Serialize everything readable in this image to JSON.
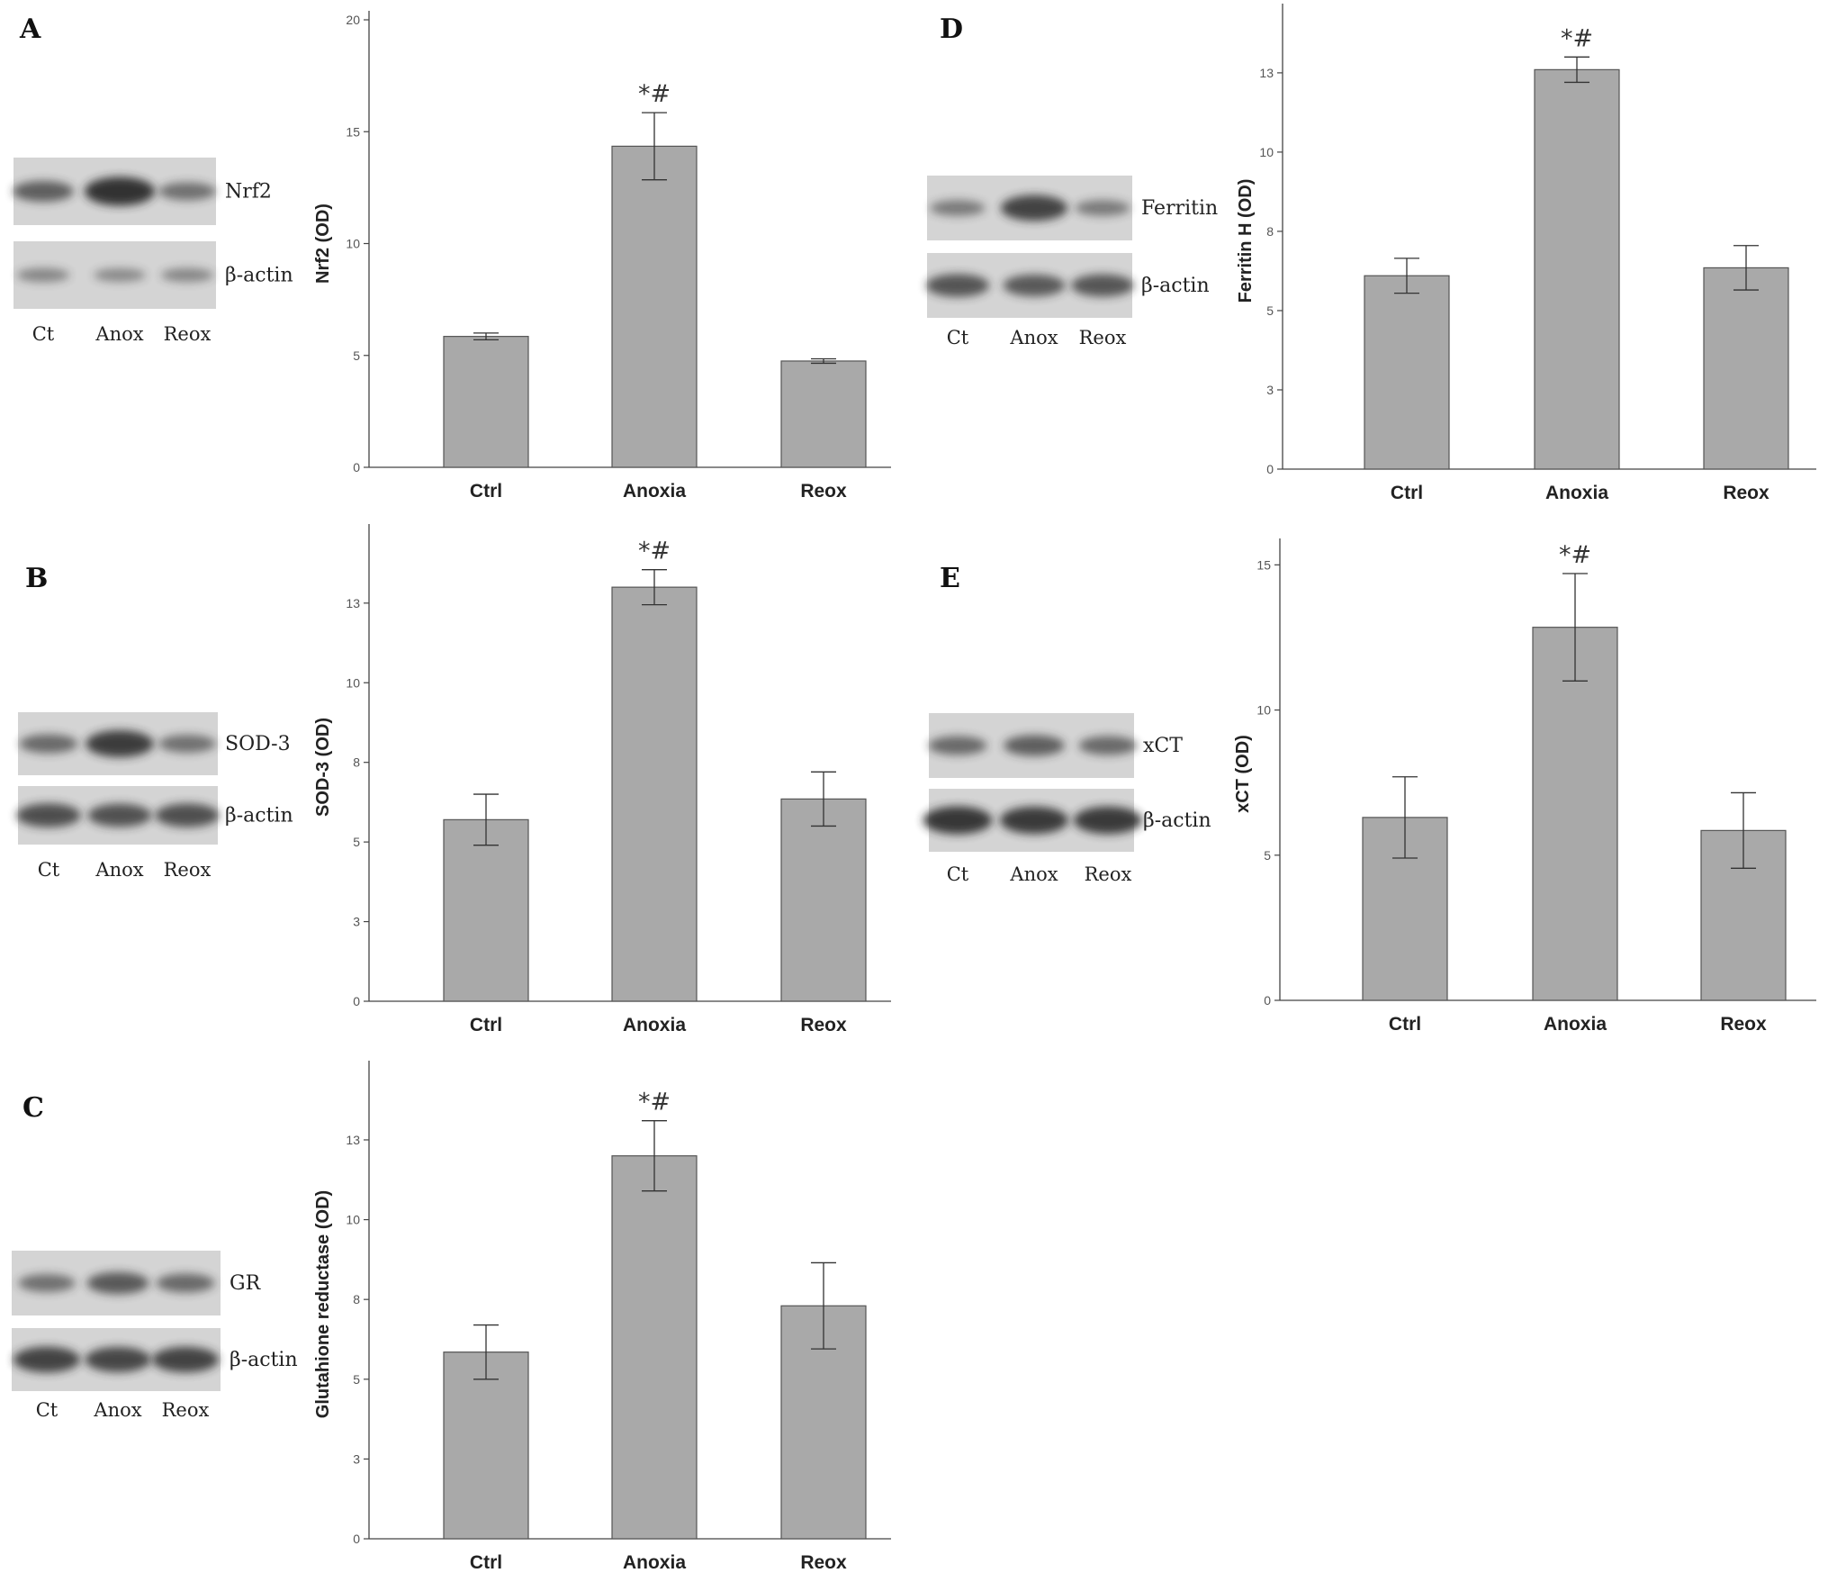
{
  "colors": {
    "bar_fill": "#a9a9a9",
    "bar_stroke": "#555555",
    "axis": "#444444",
    "blot_bg": "#d4d4d4",
    "band": "#2b2b2b"
  },
  "panels": [
    {
      "letter": "A",
      "blot": {
        "lanes": [
          "Ct",
          "Anox",
          "Reox"
        ],
        "rows": [
          {
            "label": "Nrf2",
            "intensity": [
              0.6,
              1.0,
              0.45
            ]
          },
          {
            "label": "β-actin",
            "intensity": [
              0.25,
              0.22,
              0.24
            ]
          }
        ]
      },
      "chart": {
        "ylabel": "Nrf2 (OD)",
        "ticks": [
          "0",
          "5",
          "10",
          "15",
          "20"
        ],
        "ylim": [
          0,
          20
        ],
        "categories": [
          "Ctrl",
          "Anoxia",
          "Reox"
        ],
        "values": [
          5.85,
          14.35,
          4.75
        ],
        "errors": [
          0.15,
          1.5,
          0.1
        ],
        "annotation": "*#"
      }
    },
    {
      "letter": "B",
      "blot": {
        "lanes": [
          "Ct",
          "Anox",
          "Reox"
        ],
        "rows": [
          {
            "label": "SOD-3",
            "intensity": [
              0.5,
              0.9,
              0.45
            ]
          },
          {
            "label": "β-actin",
            "intensity": [
              0.75,
              0.72,
              0.74
            ]
          }
        ]
      },
      "chart": {
        "ylabel": "SOD-3 (OD)",
        "ticks": [
          "0",
          "3",
          "5",
          "8",
          "10",
          "13"
        ],
        "tick_values": [
          0,
          2.5,
          5,
          7.5,
          10,
          12.5
        ],
        "ylim": [
          0,
          14.7
        ],
        "categories": [
          "Ctrl",
          "Anoxia",
          "Reox"
        ],
        "values": [
          5.7,
          13.0,
          6.35
        ],
        "errors": [
          0.8,
          0.55,
          0.85
        ],
        "annotation": "*#"
      }
    },
    {
      "letter": "C",
      "blot": {
        "lanes": [
          "Ct",
          "Anox",
          "Reox"
        ],
        "rows": [
          {
            "label": "GR",
            "intensity": [
              0.45,
              0.65,
              0.5
            ]
          },
          {
            "label": "β-actin",
            "intensity": [
              0.85,
              0.82,
              0.84
            ]
          }
        ]
      },
      "chart": {
        "ylabel": "Glutahione reductase (OD)",
        "ticks": [
          "0",
          "3",
          "5",
          "8",
          "10",
          "13"
        ],
        "tick_values": [
          0,
          2.5,
          5,
          7.5,
          10,
          12.5
        ],
        "ylim": [
          0,
          14.7
        ],
        "categories": [
          "Ctrl",
          "Anoxia",
          "Reox"
        ],
        "values": [
          5.85,
          12.0,
          7.3
        ],
        "errors": [
          0.85,
          1.1,
          1.35
        ],
        "annotation": "*#"
      }
    },
    {
      "letter": "D",
      "blot": {
        "lanes": [
          "Ct",
          "Anox",
          "Reox"
        ],
        "rows": [
          {
            "label": "Ferritin",
            "intensity": [
              0.35,
              0.85,
              0.35
            ]
          },
          {
            "label": "β-actin",
            "intensity": [
              0.7,
              0.65,
              0.68
            ]
          }
        ]
      },
      "chart": {
        "ylabel": "Ferritin H (OD)",
        "ticks": [
          "0",
          "3",
          "5",
          "8",
          "10",
          "13"
        ],
        "tick_values": [
          0,
          2.5,
          5,
          7.5,
          10,
          12.5
        ],
        "ylim": [
          0,
          14.4
        ],
        "categories": [
          "Ctrl",
          "Anoxia",
          "Reox"
        ],
        "values": [
          6.1,
          12.6,
          6.35
        ],
        "errors": [
          0.55,
          0.4,
          0.7
        ],
        "annotation": "*#"
      }
    },
    {
      "letter": "E",
      "blot": {
        "lanes": [
          "Ct",
          "Anox",
          "Reox"
        ],
        "rows": [
          {
            "label": "xCT",
            "intensity": [
              0.5,
              0.6,
              0.5
            ]
          },
          {
            "label": "β-actin",
            "intensity": [
              0.95,
              0.92,
              0.93
            ]
          }
        ]
      },
      "chart": {
        "ylabel": "xCT (OD)",
        "ticks": [
          "0",
          "5",
          "10",
          "15"
        ],
        "tick_values": [
          0,
          5,
          10,
          15
        ],
        "ylim": [
          0,
          15.6
        ],
        "categories": [
          "Ctrl",
          "Anoxia",
          "Reox"
        ],
        "values": [
          6.3,
          12.85,
          5.85
        ],
        "errors": [
          1.4,
          1.85,
          1.3
        ],
        "annotation": "*#"
      }
    }
  ],
  "chart_data": [
    {
      "type": "bar",
      "title": "",
      "xlabel": "",
      "ylabel": "Nrf2 (OD)",
      "categories": [
        "Ctrl",
        "Anoxia",
        "Reox"
      ],
      "values": [
        5.85,
        14.35,
        4.75
      ],
      "errors": [
        0.15,
        1.5,
        0.1
      ],
      "ylim": [
        0,
        20
      ],
      "grid": false
    },
    {
      "type": "bar",
      "title": "",
      "xlabel": "",
      "ylabel": "SOD-3 (OD)",
      "categories": [
        "Ctrl",
        "Anoxia",
        "Reox"
      ],
      "values": [
        5.7,
        13.0,
        6.35
      ],
      "errors": [
        0.8,
        0.55,
        0.85
      ],
      "ylim": [
        0,
        14.7
      ],
      "grid": false
    },
    {
      "type": "bar",
      "title": "",
      "xlabel": "",
      "ylabel": "Glutahione reductase (OD)",
      "categories": [
        "Ctrl",
        "Anoxia",
        "Reox"
      ],
      "values": [
        5.85,
        12.0,
        7.3
      ],
      "errors": [
        0.85,
        1.1,
        1.35
      ],
      "ylim": [
        0,
        14.7
      ],
      "grid": false
    },
    {
      "type": "bar",
      "title": "",
      "xlabel": "",
      "ylabel": "Ferritin H (OD)",
      "categories": [
        "Ctrl",
        "Anoxia",
        "Reox"
      ],
      "values": [
        6.1,
        12.6,
        6.35
      ],
      "errors": [
        0.55,
        0.4,
        0.7
      ],
      "ylim": [
        0,
        14.4
      ],
      "grid": false
    },
    {
      "type": "bar",
      "title": "",
      "xlabel": "",
      "ylabel": "xCT (OD)",
      "categories": [
        "Ctrl",
        "Anoxia",
        "Reox"
      ],
      "values": [
        6.3,
        12.85,
        5.85
      ],
      "errors": [
        1.4,
        1.85,
        1.3
      ],
      "ylim": [
        0,
        15.6
      ],
      "grid": false
    }
  ]
}
